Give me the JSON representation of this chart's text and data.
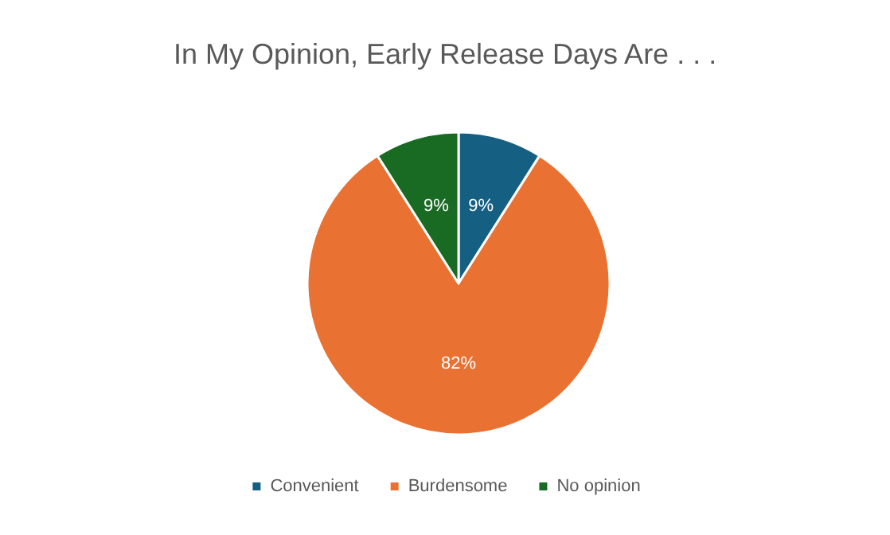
{
  "chart_data": {
    "type": "pie",
    "title": "In My Opinion, Early Release Days Are . . .",
    "categories": [
      "Convenient",
      "Burdensome",
      "No opinion"
    ],
    "values": [
      9,
      82,
      9
    ],
    "value_labels": [
      "9%",
      "82%",
      "9%"
    ],
    "colors": [
      "#156082",
      "#e97132",
      "#196b24"
    ],
    "legend": "bottom"
  }
}
